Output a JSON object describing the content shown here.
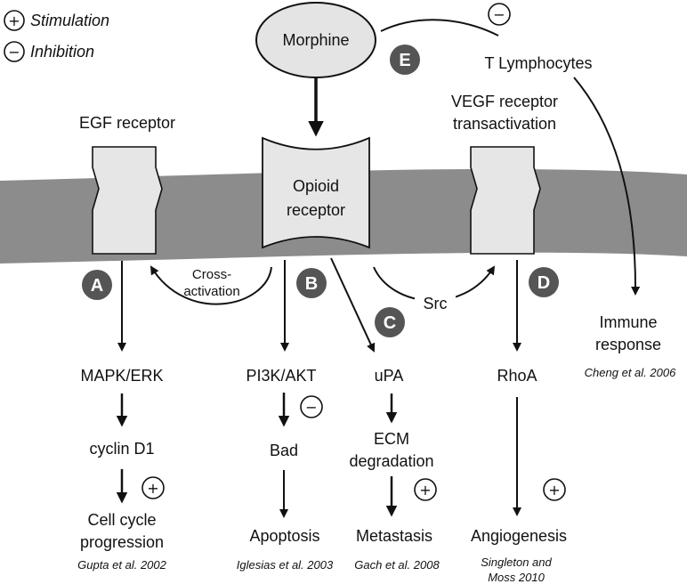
{
  "legend": {
    "stimulation_symbol": "+",
    "stimulation_label": "Stimulation",
    "inhibition_symbol": "−",
    "inhibition_label": "Inhibition"
  },
  "nodes": {
    "morphine": "Morphine",
    "t_lymphocytes": "T Lymphocytes",
    "egf_receptor": "EGF receptor",
    "vegf_receptor_line1": "VEGF receptor",
    "vegf_receptor_line2": "transactivation",
    "opioid_receptor_line1": "Opioid",
    "opioid_receptor_line2": "receptor",
    "cross_activation_line1": "Cross-",
    "cross_activation_line2": "activation",
    "src": "Src",
    "immune_response_line1": "Immune",
    "immune_response_line2": "response",
    "mapk_erk": "MAPK/ERK",
    "cyclin_d1": "cyclin D1",
    "cell_cycle_line1": "Cell cycle",
    "cell_cycle_line2": "progression",
    "pi3k_akt": "PI3K/AKT",
    "bad": "Bad",
    "apoptosis": "Apoptosis",
    "upa": "uPA",
    "ecm_line1": "ECM",
    "ecm_line2": "degradation",
    "metastasis": "Metastasis",
    "rhoa": "RhoA",
    "angiogenesis": "Angiogenesis"
  },
  "badges": {
    "a": "A",
    "b": "B",
    "c": "C",
    "d": "D",
    "e": "E"
  },
  "signs": {
    "plus": "+",
    "minus": "−"
  },
  "references": {
    "gupta": "Gupta et al. 2002",
    "iglesias": "Iglesias et al. 2003",
    "gach": "Gach et al. 2008",
    "singleton_line1": "Singleton and",
    "singleton_line2": "Moss 2010",
    "cheng": "Cheng et al. 2006"
  },
  "colors": {
    "membrane": "#8c8c8c",
    "receptor_fill": "#e6e6e6",
    "badge_fill": "#555555",
    "morphine_fill": "#e4e4e4",
    "line": "#111111"
  }
}
